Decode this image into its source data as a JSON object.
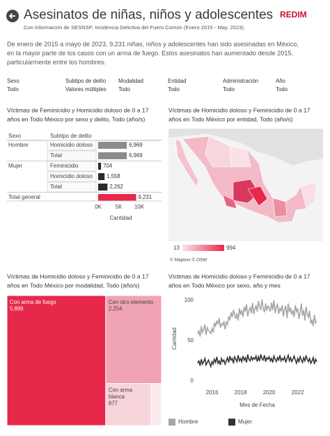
{
  "header": {
    "title": "Asesinatos de niñas, niños y adolescentes",
    "subtitle": "Con información de SESNSP, Incidencia Delictiva del Fuero Común (Enero 2015 - May. 2023).",
    "logo": "REDIM"
  },
  "paragraph": [
    "De enero de 2015 a mayo de 2023, 9,231 niñas, niños y adolescentes han sido asesinadas en México,",
    "en la mayor parte de los casos con un arma de fuego. Estos asesinatos han aumentado desde 2015,",
    "particularmente entre los hombres."
  ],
  "filters": [
    {
      "label": "Sexo",
      "value": "Todo"
    },
    {
      "label": "Subtipo de delito",
      "value": "Valores múltiples"
    },
    {
      "label": "Modalidad",
      "value": "Todo"
    },
    {
      "label": "Entidad",
      "value": "Todo"
    },
    {
      "label": "Administración",
      "value": "Todo"
    },
    {
      "label": "Año",
      "value": "Todo"
    }
  ],
  "chart_data": [
    {
      "type": "bar",
      "orientation": "horizontal",
      "title": [
        "Víctimas de Feminicidio y Homicidio doloso de 0 a 17",
        "años en Todo México por sexo y delito, Todo (año/s)"
      ],
      "column_headers": [
        "Sexo",
        "Subtipo de delito"
      ],
      "groups": [
        "Hombre",
        null,
        "Mujer",
        null,
        null,
        "Total general"
      ],
      "categories": [
        "Homicidio doloso",
        "Total",
        "Feminicidio",
        "Homicidio doloso",
        "Total",
        null
      ],
      "values": [
        6969,
        6969,
        704,
        1558,
        2262,
        9231
      ],
      "value_labels": [
        "6,969",
        "6,969",
        "704",
        "1,558",
        "2,262",
        "9,231"
      ],
      "colors": [
        "#8c8c8c",
        "#8c8c8c",
        "#2b2b2b",
        "#2b2b2b",
        "#2b2b2b",
        "#e8284a"
      ],
      "xlim": [
        0,
        11000
      ],
      "xticks": [
        {
          "value": 0,
          "label": "0K"
        },
        {
          "value": 5000,
          "label": "5K"
        },
        {
          "value": 10000,
          "label": "10K"
        }
      ],
      "xlabel": "Cantidad"
    },
    {
      "type": "map",
      "title": [
        "Víctimas de Homicidio doloso y Feminicidio de 0 a 17",
        "años en Todo México por entidad, Todo (año/s)"
      ],
      "color_scale": {
        "min": 13,
        "max": 994,
        "colors": [
          "#fbe3e8",
          "#e8284a"
        ]
      },
      "attribution": "© Mapbox © OSM"
    },
    {
      "type": "treemap",
      "title": [
        "Víctimas de Homicidio doloso y Feminicidio de 0 a 17",
        "años en Todo México por modalidad, Todo (año/s)"
      ],
      "categories": [
        "Con arma de fuego",
        "Con otro elemento",
        "Con arma blanca",
        null
      ],
      "values": [
        5899,
        2254,
        877,
        201
      ],
      "value_labels": [
        "5,899",
        "2,254",
        "877",
        null
      ],
      "colors": [
        "#e8284a",
        "#f0a3b3",
        "#f7d3da",
        "#fbe8ec"
      ]
    },
    {
      "type": "line",
      "title": [
        "Víctimas de Homicidio doloso y Feminicidio de 0 a 17",
        "años en Todo México por sexo, año y mes"
      ],
      "x": [
        "2015-01",
        "2015-02",
        "2015-03",
        "2015-04",
        "2015-05",
        "2015-06",
        "2015-07",
        "2015-08",
        "2015-09",
        "2015-10",
        "2015-11",
        "2015-12",
        "2016-01",
        "2016-02",
        "2016-03",
        "2016-04",
        "2016-05",
        "2016-06",
        "2016-07",
        "2016-08",
        "2016-09",
        "2016-10",
        "2016-11",
        "2016-12",
        "2017-01",
        "2017-02",
        "2017-03",
        "2017-04",
        "2017-05",
        "2017-06",
        "2017-07",
        "2017-08",
        "2017-09",
        "2017-10",
        "2017-11",
        "2017-12",
        "2018-01",
        "2018-02",
        "2018-03",
        "2018-04",
        "2018-05",
        "2018-06",
        "2018-07",
        "2018-08",
        "2018-09",
        "2018-10",
        "2018-11",
        "2018-12",
        "2019-01",
        "2019-02",
        "2019-03",
        "2019-04",
        "2019-05",
        "2019-06",
        "2019-07",
        "2019-08",
        "2019-09",
        "2019-10",
        "2019-11",
        "2019-12",
        "2020-01",
        "2020-02",
        "2020-03",
        "2020-04",
        "2020-05",
        "2020-06",
        "2020-07",
        "2020-08",
        "2020-09",
        "2020-10",
        "2020-11",
        "2020-12",
        "2021-01",
        "2021-02",
        "2021-03",
        "2021-04",
        "2021-05",
        "2021-06",
        "2021-07",
        "2021-08",
        "2021-09",
        "2021-10",
        "2021-11",
        "2021-12",
        "2022-01",
        "2022-02",
        "2022-03",
        "2022-04",
        "2022-05",
        "2022-06",
        "2022-07",
        "2022-08",
        "2022-09",
        "2022-10",
        "2022-11",
        "2022-12",
        "2023-01",
        "2023-02",
        "2023-03",
        "2023-04",
        "2023-05"
      ],
      "series": [
        {
          "name": "Hombre",
          "color": "#a6a6a6",
          "values": [
            58,
            62,
            55,
            68,
            60,
            64,
            70,
            57,
            66,
            63,
            61,
            59,
            65,
            60,
            72,
            68,
            75,
            70,
            78,
            66,
            71,
            69,
            74,
            64,
            73,
            70,
            80,
            76,
            85,
            79,
            88,
            82,
            77,
            84,
            75,
            90,
            82,
            88,
            79,
            92,
            86,
            95,
            80,
            87,
            91,
            84,
            97,
            83,
            89,
            94,
            86,
            99,
            92,
            88,
            101,
            90,
            85,
            96,
            87,
            93,
            91,
            86,
            97,
            88,
            100,
            84,
            92,
            95,
            83,
            90,
            87,
            94,
            80,
            89,
            93,
            78,
            96,
            85,
            91,
            82,
            88,
            79,
            94,
            86,
            90,
            77,
            85,
            96,
            81,
            88,
            75,
            92,
            83,
            79,
            87,
            71,
            76,
            68,
            82,
            72,
            74
          ]
        },
        {
          "name": "Mujer",
          "color": "#333333",
          "values": [
            22,
            25,
            19,
            27,
            21,
            24,
            28,
            20,
            23,
            26,
            22,
            18,
            24,
            21,
            27,
            23,
            30,
            22,
            25,
            20,
            28,
            24,
            26,
            21,
            25,
            29,
            23,
            31,
            26,
            28,
            22,
            30,
            27,
            24,
            32,
            25,
            28,
            24,
            31,
            26,
            29,
            23,
            33,
            27,
            25,
            30,
            26,
            29,
            27,
            31,
            24,
            30,
            25,
            33,
            28,
            26,
            32,
            24,
            29,
            27,
            30,
            25,
            28,
            23,
            31,
            27,
            24,
            29,
            26,
            32,
            25,
            28,
            26,
            30,
            23,
            28,
            32,
            25,
            29,
            24,
            27,
            31,
            26,
            22,
            28,
            24,
            30,
            26,
            23,
            29,
            25,
            31,
            27,
            24,
            28,
            22,
            25,
            29,
            21,
            27,
            24
          ]
        }
      ],
      "xlim": [
        "2015-01",
        "2023-05"
      ],
      "xticks": [
        2016,
        2018,
        2020,
        2022
      ],
      "ylim": [
        0,
        105
      ],
      "yticks": [
        0,
        50,
        100
      ],
      "xlabel": "Mes de Fecha",
      "ylabel": "Cantidad"
    }
  ]
}
